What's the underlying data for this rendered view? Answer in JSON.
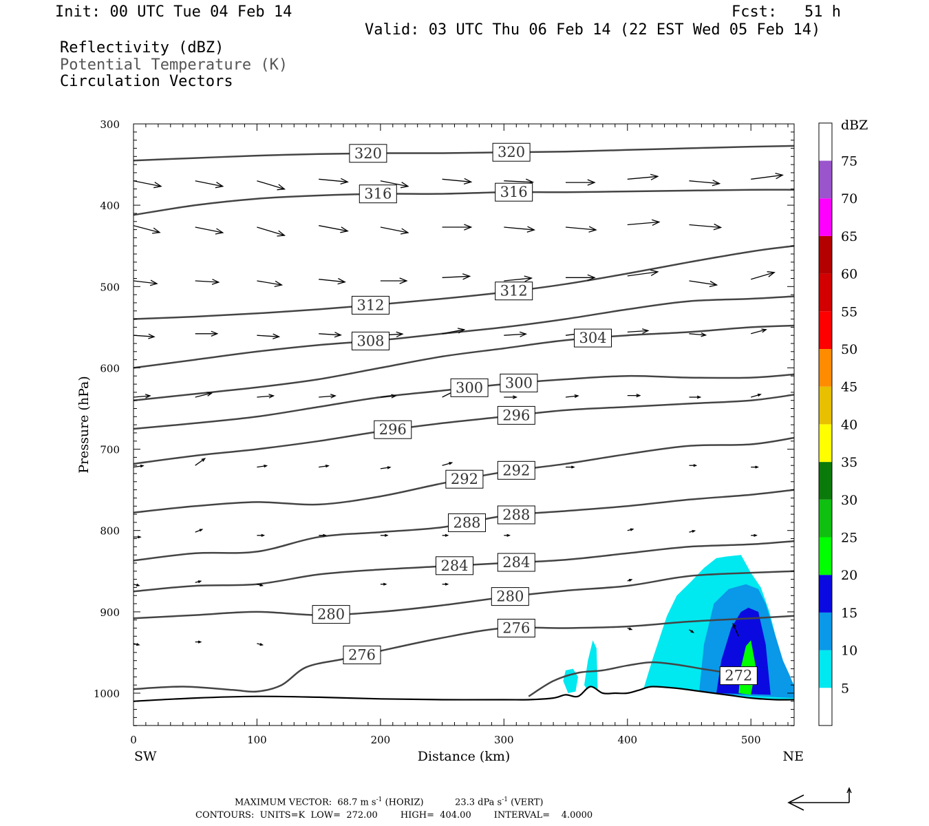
{
  "header": {
    "init": "Init: 00 UTC Tue 04 Feb 14",
    "fcst": "Fcst:   51 h",
    "valid": "Valid: 03 UTC Thu 06 Feb 14 (22 EST Wed 05 Feb 14)",
    "fields": [
      "Reflectivity (dBZ)",
      "Potential Temperature (K)",
      "Circulation Vectors"
    ]
  },
  "footer": {
    "max_vector_label": "MAXIMUM VECTOR:",
    "max_vector_horiz": "68.7 m s",
    "horiz_tag": "(HORIZ)",
    "max_vector_vert": "23.3 dPa s",
    "vert_tag": "(VERT)",
    "exp": "-1",
    "contours": "CONTOURS:  UNITS=K  LOW=  272.00        HIGH=  404.00        INTERVAL=    4.0000"
  },
  "chart_data": {
    "type": "cross-section",
    "xlabel": "Distance (km)",
    "ylabel": "Pressure (hPa)",
    "xlim": [
      0,
      535
    ],
    "ylim": [
      1040,
      300
    ],
    "x_ticks": [
      "0",
      "100",
      "200",
      "300",
      "400",
      "500"
    ],
    "y_ticks": [
      "300",
      "400",
      "500",
      "600",
      "700",
      "800",
      "900",
      "1000"
    ],
    "left_end_label": "SW",
    "right_end_label": "NE",
    "colorbar": {
      "unit": "dBZ",
      "levels": [
        0,
        5,
        10,
        15,
        20,
        25,
        30,
        35,
        40,
        45,
        50,
        55,
        60,
        65,
        70,
        75,
        80
      ],
      "labels": [
        "5",
        "10",
        "15",
        "20",
        "25",
        "30",
        "35",
        "40",
        "45",
        "50",
        "55",
        "60",
        "65",
        "70",
        "75"
      ],
      "colors": [
        "#ffffff",
        "#00e8f0",
        "#0a98e8",
        "#0a0ae0",
        "#00ff00",
        "#10c010",
        "#0a7a0a",
        "#ffff00",
        "#e8c000",
        "#ff8c00",
        "#ff0000",
        "#d20000",
        "#b40000",
        "#ff00ff",
        "#9a55cc",
        "#ffffff"
      ]
    },
    "theta_contours": [
      {
        "label": "320",
        "x": [
          0,
          50,
          100,
          150,
          200,
          250,
          300,
          350,
          400,
          450,
          500,
          535
        ],
        "p": [
          345,
          342,
          339,
          337,
          336,
          336,
          335,
          334,
          332,
          330,
          328,
          327
        ],
        "labels_at": [
          190,
          306
        ]
      },
      {
        "label": "316",
        "x": [
          0,
          50,
          100,
          150,
          200,
          250,
          300,
          350,
          400,
          450,
          500,
          535
        ],
        "p": [
          412,
          400,
          392,
          388,
          386,
          386,
          384,
          384,
          383,
          382,
          381,
          381
        ],
        "labels_at": [
          198,
          308
        ]
      },
      {
        "label": "312",
        "x": [
          0,
          50,
          100,
          150,
          200,
          250,
          300,
          350,
          400,
          450,
          500,
          535
        ],
        "p": [
          540,
          537,
          533,
          528,
          522,
          515,
          507,
          497,
          484,
          470,
          457,
          450
        ],
        "labels_at": [
          192,
          308
        ]
      },
      {
        "label": "308",
        "x": [
          0,
          50,
          100,
          150,
          200,
          250,
          300,
          350,
          400,
          450,
          500,
          535
        ],
        "p": [
          600,
          590,
          580,
          572,
          566,
          558,
          550,
          540,
          528,
          518,
          515,
          512
        ],
        "labels_at": [
          192
        ]
      },
      {
        "label": "304",
        "x": [
          0,
          50,
          100,
          150,
          200,
          250,
          300,
          350,
          400,
          450,
          500,
          535
        ],
        "p": [
          640,
          632,
          624,
          614,
          600,
          586,
          576,
          566,
          560,
          556,
          550,
          548
        ],
        "labels_at": [
          372
        ]
      },
      {
        "label": "300",
        "x": [
          0,
          50,
          100,
          150,
          200,
          250,
          300,
          350,
          400,
          450,
          500,
          535
        ],
        "p": [
          675,
          668,
          660,
          648,
          636,
          628,
          620,
          614,
          610,
          612,
          612,
          608
        ],
        "labels_at": [
          272,
          312
        ]
      },
      {
        "label": "296",
        "x": [
          0,
          50,
          100,
          150,
          200,
          250,
          300,
          350,
          400,
          450,
          500,
          535
        ],
        "p": [
          718,
          708,
          700,
          690,
          678,
          668,
          660,
          652,
          648,
          644,
          640,
          633
        ],
        "labels_at": [
          210,
          310
        ]
      },
      {
        "label": "292",
        "x": [
          0,
          50,
          100,
          150,
          200,
          250,
          300,
          350,
          400,
          450,
          500,
          535
        ],
        "p": [
          778,
          770,
          765,
          768,
          758,
          742,
          728,
          718,
          706,
          696,
          694,
          686
        ],
        "labels_at": [
          268,
          310
        ]
      },
      {
        "label": "288",
        "x": [
          0,
          50,
          100,
          150,
          200,
          250,
          300,
          350,
          400,
          450,
          500,
          535
        ],
        "p": [
          837,
          828,
          826,
          808,
          802,
          796,
          782,
          776,
          770,
          762,
          756,
          750
        ],
        "labels_at": [
          270,
          310
        ]
      },
      {
        "label": "284",
        "x": [
          0,
          50,
          100,
          150,
          200,
          250,
          300,
          350,
          400,
          450,
          500,
          535
        ],
        "p": [
          875,
          868,
          866,
          854,
          848,
          844,
          840,
          836,
          828,
          820,
          817,
          813
        ],
        "labels_at": [
          260,
          310
        ]
      },
      {
        "label": "280",
        "x": [
          0,
          50,
          100,
          150,
          200,
          250,
          300,
          350,
          400,
          450,
          500,
          535
        ],
        "p": [
          908,
          904,
          900,
          904,
          900,
          892,
          882,
          874,
          868,
          856,
          852,
          850
        ],
        "labels_at": [
          160,
          305
        ]
      },
      {
        "label": "276",
        "x": [
          0,
          40,
          80,
          100,
          120,
          140,
          170,
          200,
          250,
          300,
          350,
          400,
          450,
          500,
          535
        ],
        "p": [
          995,
          992,
          996,
          998,
          990,
          968,
          958,
          948,
          932,
          920,
          920,
          918,
          912,
          908,
          905
        ],
        "labels_at": [
          185,
          310
        ]
      },
      {
        "label": "272",
        "x": [
          320,
          340,
          360,
          380,
          400,
          420,
          440,
          460,
          480,
          500
        ],
        "p": [
          1004,
          985,
          975,
          972,
          966,
          962,
          965,
          970,
          975,
          982
        ],
        "labels_at": [
          490
        ]
      }
    ],
    "surface": {
      "x": [
        0,
        50,
        100,
        150,
        200,
        250,
        300,
        320,
        340,
        350,
        360,
        370,
        380,
        390,
        400,
        410,
        420,
        440,
        460,
        480,
        500,
        520,
        535
      ],
      "p": [
        1010,
        1006,
        1004,
        1005,
        1007,
        1008,
        1008,
        1008,
        1006,
        1002,
        1004,
        992,
        1000,
        1000,
        1000,
        996,
        992,
        994,
        998,
        1002,
        1006,
        1008,
        1008
      ]
    },
    "reflectivity_areas": [
      {
        "level": 5,
        "x": [
          412,
          420,
          432,
          440,
          452,
          462,
          472,
          480,
          492,
          500,
          508,
          515,
          525,
          535,
          535,
          412
        ],
        "p": [
          1000,
          960,
          905,
          880,
          862,
          846,
          834,
          832,
          830,
          852,
          870,
          900,
          960,
          990,
          1008,
          1000
        ]
      },
      {
        "level": 5,
        "x": [
          348,
          350,
          356,
          360,
          358,
          352,
          348
        ],
        "p": [
          985,
          972,
          970,
          980,
          998,
          1000,
          985
        ]
      },
      {
        "level": 5,
        "x": [
          365,
          368,
          372,
          375,
          376,
          370,
          365
        ],
        "p": [
          990,
          960,
          935,
          945,
          1000,
          1002,
          990
        ]
      },
      {
        "level": 10,
        "x": [
          458,
          462,
          470,
          482,
          496,
          506,
          512,
          520,
          526,
          532,
          535,
          535,
          458
        ],
        "p": [
          1000,
          940,
          890,
          872,
          866,
          872,
          890,
          930,
          960,
          980,
          992,
          1006,
          1000
        ]
      },
      {
        "level": 15,
        "x": [
          472,
          476,
          484,
          492,
          498,
          506,
          512,
          516,
          472
        ],
        "p": [
          1000,
          960,
          920,
          900,
          895,
          900,
          940,
          1002,
          1000
        ]
      },
      {
        "level": 20,
        "x": [
          490,
          492,
          496,
          500,
          504,
          500,
          490
        ],
        "p": [
          1000,
          968,
          942,
          935,
          968,
          1002,
          1000
        ]
      }
    ],
    "vectors": [
      {
        "x": 0,
        "p": 370,
        "dx": 40,
        "dp": 8
      },
      {
        "x": 50,
        "p": 370,
        "dx": 40,
        "dp": 8
      },
      {
        "x": 100,
        "p": 370,
        "dx": 40,
        "dp": 12
      },
      {
        "x": 150,
        "p": 368,
        "dx": 42,
        "dp": 4
      },
      {
        "x": 200,
        "p": 370,
        "dx": 40,
        "dp": 8
      },
      {
        "x": 250,
        "p": 368,
        "dx": 42,
        "dp": 4
      },
      {
        "x": 300,
        "p": 370,
        "dx": 42,
        "dp": 2
      },
      {
        "x": 350,
        "p": 372,
        "dx": 42,
        "dp": 0
      },
      {
        "x": 400,
        "p": 368,
        "dx": 44,
        "dp": -4
      },
      {
        "x": 450,
        "p": 370,
        "dx": 44,
        "dp": 4
      },
      {
        "x": 500,
        "p": 368,
        "dx": 46,
        "dp": -6
      },
      {
        "x": 0,
        "p": 425,
        "dx": 38,
        "dp": 10
      },
      {
        "x": 50,
        "p": 427,
        "dx": 40,
        "dp": 8
      },
      {
        "x": 100,
        "p": 427,
        "dx": 40,
        "dp": 12
      },
      {
        "x": 150,
        "p": 425,
        "dx": 42,
        "dp": 8
      },
      {
        "x": 200,
        "p": 427,
        "dx": 40,
        "dp": 8
      },
      {
        "x": 250,
        "p": 427,
        "dx": 42,
        "dp": 0
      },
      {
        "x": 300,
        "p": 427,
        "dx": 44,
        "dp": 4
      },
      {
        "x": 350,
        "p": 427,
        "dx": 44,
        "dp": 4
      },
      {
        "x": 400,
        "p": 424,
        "dx": 46,
        "dp": -4
      },
      {
        "x": 450,
        "p": 424,
        "dx": 46,
        "dp": 4
      },
      {
        "x": 0,
        "p": 493,
        "dx": 34,
        "dp": 4
      },
      {
        "x": 50,
        "p": 493,
        "dx": 34,
        "dp": 2
      },
      {
        "x": 100,
        "p": 493,
        "dx": 36,
        "dp": 6
      },
      {
        "x": 150,
        "p": 491,
        "dx": 38,
        "dp": 4
      },
      {
        "x": 200,
        "p": 493,
        "dx": 38,
        "dp": 0
      },
      {
        "x": 250,
        "p": 489,
        "dx": 40,
        "dp": -2
      },
      {
        "x": 300,
        "p": 493,
        "dx": 40,
        "dp": -4
      },
      {
        "x": 350,
        "p": 489,
        "dx": 42,
        "dp": 0
      },
      {
        "x": 400,
        "p": 487,
        "dx": 44,
        "dp": -6
      },
      {
        "x": 450,
        "p": 493,
        "dx": 40,
        "dp": 6
      },
      {
        "x": 500,
        "p": 491,
        "dx": 34,
        "dp": -10
      },
      {
        "x": 0,
        "p": 560,
        "dx": 30,
        "dp": 2
      },
      {
        "x": 50,
        "p": 558,
        "dx": 32,
        "dp": 0
      },
      {
        "x": 100,
        "p": 560,
        "dx": 32,
        "dp": 2
      },
      {
        "x": 150,
        "p": 558,
        "dx": 32,
        "dp": 2
      },
      {
        "x": 200,
        "p": 560,
        "dx": 32,
        "dp": -2
      },
      {
        "x": 250,
        "p": 558,
        "dx": 32,
        "dp": -6
      },
      {
        "x": 300,
        "p": 560,
        "dx": 32,
        "dp": -2
      },
      {
        "x": 350,
        "p": 560,
        "dx": 32,
        "dp": -4
      },
      {
        "x": 400,
        "p": 556,
        "dx": 30,
        "dp": -2
      },
      {
        "x": 450,
        "p": 558,
        "dx": 24,
        "dp": 2
      },
      {
        "x": 500,
        "p": 558,
        "dx": 22,
        "dp": -6
      },
      {
        "x": 0,
        "p": 636,
        "dx": 24,
        "dp": -2
      },
      {
        "x": 50,
        "p": 636,
        "dx": 24,
        "dp": -6
      },
      {
        "x": 100,
        "p": 636,
        "dx": 24,
        "dp": -2
      },
      {
        "x": 150,
        "p": 636,
        "dx": 24,
        "dp": -2
      },
      {
        "x": 200,
        "p": 636,
        "dx": 22,
        "dp": -2
      },
      {
        "x": 250,
        "p": 636,
        "dx": 20,
        "dp": -10
      },
      {
        "x": 300,
        "p": 636,
        "dx": 18,
        "dp": 0
      },
      {
        "x": 350,
        "p": 636,
        "dx": 18,
        "dp": -2
      },
      {
        "x": 400,
        "p": 634,
        "dx": 18,
        "dp": 0
      },
      {
        "x": 450,
        "p": 636,
        "dx": 16,
        "dp": 0
      },
      {
        "x": 500,
        "p": 636,
        "dx": 14,
        "dp": -4
      },
      {
        "x": 0,
        "p": 722,
        "dx": 14,
        "dp": -2
      },
      {
        "x": 50,
        "p": 720,
        "dx": 14,
        "dp": -10
      },
      {
        "x": 100,
        "p": 722,
        "dx": 14,
        "dp": -2
      },
      {
        "x": 150,
        "p": 722,
        "dx": 14,
        "dp": -2
      },
      {
        "x": 200,
        "p": 724,
        "dx": 14,
        "dp": -2
      },
      {
        "x": 250,
        "p": 720,
        "dx": 14,
        "dp": -4
      },
      {
        "x": 300,
        "p": 720,
        "dx": 12,
        "dp": 0
      },
      {
        "x": 350,
        "p": 722,
        "dx": 12,
        "dp": 0
      },
      {
        "x": 450,
        "p": 720,
        "dx": 10,
        "dp": 0
      },
      {
        "x": 500,
        "p": 722,
        "dx": 10,
        "dp": 0
      },
      {
        "x": 0,
        "p": 808,
        "dx": 10,
        "dp": 0
      },
      {
        "x": 50,
        "p": 802,
        "dx": 10,
        "dp": -4
      },
      {
        "x": 100,
        "p": 806,
        "dx": 10,
        "dp": 0
      },
      {
        "x": 150,
        "p": 806,
        "dx": 10,
        "dp": 0
      },
      {
        "x": 200,
        "p": 806,
        "dx": 10,
        "dp": 0
      },
      {
        "x": 250,
        "p": 806,
        "dx": 8,
        "dp": 0
      },
      {
        "x": 300,
        "p": 806,
        "dx": 8,
        "dp": 0
      },
      {
        "x": 400,
        "p": 800,
        "dx": 8,
        "dp": -2
      },
      {
        "x": 450,
        "p": 802,
        "dx": 8,
        "dp": -2
      },
      {
        "x": 500,
        "p": 806,
        "dx": 8,
        "dp": 0
      },
      {
        "x": 0,
        "p": 866,
        "dx": 8,
        "dp": 2
      },
      {
        "x": 50,
        "p": 864,
        "dx": 8,
        "dp": -2
      },
      {
        "x": 100,
        "p": 866,
        "dx": 8,
        "dp": 2
      },
      {
        "x": 200,
        "p": 866,
        "dx": 8,
        "dp": 0
      },
      {
        "x": 250,
        "p": 866,
        "dx": 8,
        "dp": 0
      },
      {
        "x": 400,
        "p": 862,
        "dx": 6,
        "dp": -2
      },
      {
        "x": 0,
        "p": 939,
        "dx": 8,
        "dp": 2
      },
      {
        "x": 50,
        "p": 937,
        "dx": 8,
        "dp": 0
      },
      {
        "x": 100,
        "p": 939,
        "dx": 8,
        "dp": 2
      },
      {
        "x": 400,
        "p": 920,
        "dx": 6,
        "dp": 2
      },
      {
        "x": 450,
        "p": 922,
        "dx": 6,
        "dp": 4
      },
      {
        "x": 490,
        "p": 930,
        "dx": -8,
        "dp": -18
      }
    ]
  }
}
